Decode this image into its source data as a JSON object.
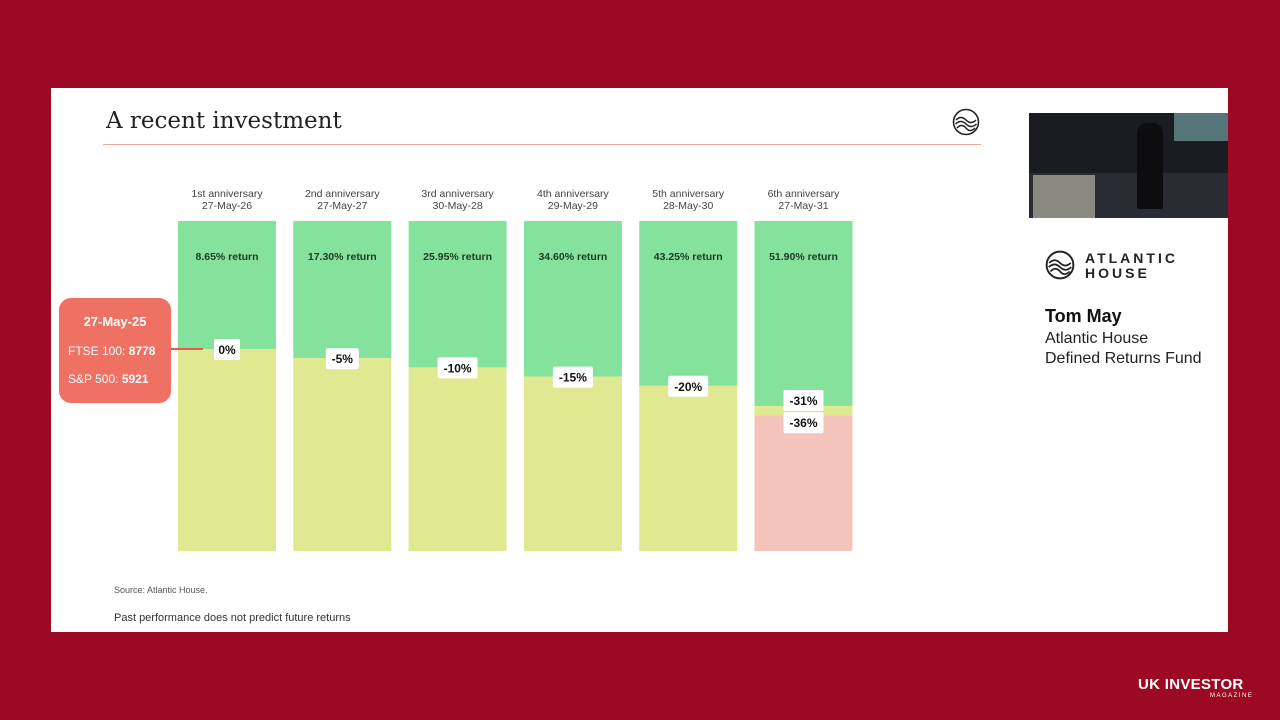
{
  "slide": {
    "title": "A recent investment",
    "source": "Source: Atlantic House.",
    "disclaimer": "Past performance does not predict future returns"
  },
  "callout": {
    "date": "27-May-25",
    "ftse_label": "FTSE 100:",
    "ftse_value": "8778",
    "sp_label": "S&P 500:",
    "sp_value": "5921",
    "color": "#ee7164"
  },
  "colors": {
    "green": "#85e29d",
    "yellow": "#e0e891",
    "pink": "#f4c4bb",
    "background": "#9b0a22"
  },
  "chart_data": {
    "type": "bar",
    "ylim": [
      -100,
      60
    ],
    "categories": [
      {
        "line1": "1st anniversary",
        "line2": "27-May-26",
        "return_label": "8.65% return",
        "return": 8.65,
        "barrier_label": "0%",
        "barrier": 0
      },
      {
        "line1": "2nd anniversary",
        "line2": "27-May-27",
        "return_label": "17.30% return",
        "return": 17.3,
        "barrier_label": "-5%",
        "barrier": -5
      },
      {
        "line1": "3rd anniversary",
        "line2": "30-May-28",
        "return_label": "25.95% return",
        "return": 25.95,
        "barrier_label": "-10%",
        "barrier": -10
      },
      {
        "line1": "4th anniversary",
        "line2": "29-May-29",
        "return_label": "34.60% return",
        "return": 34.6,
        "barrier_label": "-15%",
        "barrier": -15
      },
      {
        "line1": "5th anniversary",
        "line2": "28-May-30",
        "return_label": "43.25% return",
        "return": 43.25,
        "barrier_label": "-20%",
        "barrier": -20
      },
      {
        "line1": "6th anniversary",
        "line2": "27-May-31",
        "return_label": "51.90% return",
        "return": 51.9,
        "barrier_label": "-31%",
        "barrier": -31,
        "capital_barrier_label": "-36%",
        "capital_barrier": -36
      }
    ]
  },
  "side": {
    "brand_line1": "ATLANTIC",
    "brand_line2": "HOUSE",
    "speaker_name": "Tom May",
    "speaker_org_line1": "Atlantic House",
    "speaker_org_line2": "Defined Returns Fund"
  },
  "watermark": {
    "main": "UK INVESTOR",
    "sub": "MAGAZINE"
  }
}
